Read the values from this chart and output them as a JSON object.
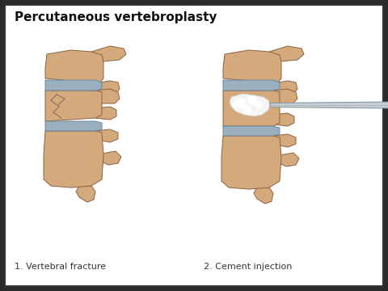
{
  "title": "Percutaneous vertebroplasty",
  "label1": "1. Vertebral fracture",
  "label2": "2. Cement injection",
  "bg_color": "#ffffff",
  "title_color": "#111111",
  "label_color": "#333333",
  "bone_fill": "#d4aa7d",
  "bone_edge": "#8a6040",
  "bone_shadow": "#c49060",
  "disc_fill": "#9ab0c0",
  "disc_edge": "#6a8898",
  "cement_fill": "#f5f5f5",
  "cement_edge": "#cccccc",
  "needle_fill": "#c8cfd4",
  "needle_edge": "#8899a0",
  "fracture_color": "#7a6050",
  "title_fontsize": 11,
  "label_fontsize": 8,
  "outer_bg": "#2a2a2a"
}
